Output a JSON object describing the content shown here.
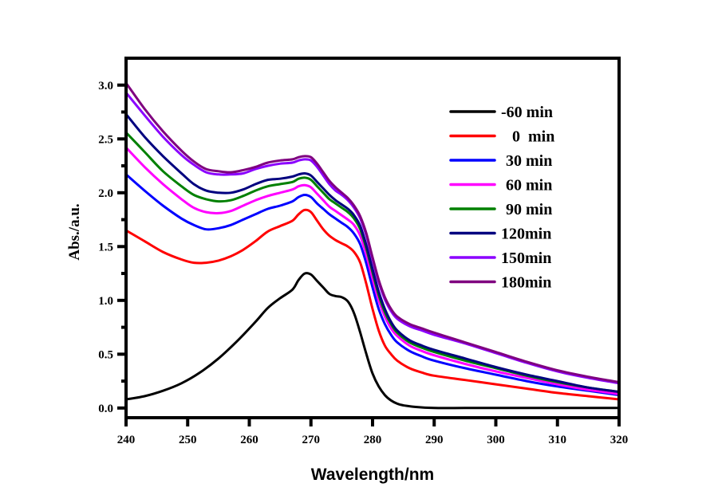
{
  "chart_data": {
    "type": "line",
    "title": "",
    "xlabel": "Wavelength/nm",
    "ylabel": "Abs./a.u.",
    "xlim": [
      240,
      320
    ],
    "ylim": [
      -0.09,
      3.25
    ],
    "xticks": [
      240,
      250,
      260,
      270,
      280,
      290,
      300,
      310,
      320
    ],
    "xtick_labels": [
      "240",
      "250",
      "260",
      "270",
      "280",
      "290",
      "300",
      "310",
      "320"
    ],
    "yticks": [
      0.0,
      0.5,
      1.0,
      1.5,
      2.0,
      2.5,
      3.0
    ],
    "ytick_labels": [
      "0.0",
      "0.5",
      "1.0",
      "1.5",
      "2.0",
      "2.5",
      "3.0"
    ],
    "yminor_ticks": [
      0.25,
      0.75,
      1.25,
      1.75,
      2.25,
      2.75
    ],
    "grid": false,
    "legend_position": "top-right",
    "series": [
      {
        "name": "-60 min",
        "color": "#000000",
        "x": [
          240,
          243,
          246,
          249,
          252,
          255,
          258,
          261,
          263,
          265,
          267,
          268,
          269,
          270,
          271,
          272,
          273,
          274,
          275,
          276,
          277,
          278,
          279,
          280,
          281,
          282,
          283,
          284,
          285,
          287,
          290,
          295,
          300,
          310,
          320
        ],
        "y": [
          0.08,
          0.11,
          0.16,
          0.23,
          0.33,
          0.46,
          0.62,
          0.8,
          0.93,
          1.02,
          1.1,
          1.19,
          1.25,
          1.24,
          1.18,
          1.12,
          1.06,
          1.04,
          1.03,
          0.99,
          0.88,
          0.7,
          0.5,
          0.32,
          0.2,
          0.12,
          0.07,
          0.04,
          0.025,
          0.01,
          0.0,
          0.0,
          0.0,
          0.0,
          0.0
        ]
      },
      {
        "name": "0  min",
        "color": "#ff0000",
        "x": [
          240,
          243,
          246,
          249,
          251,
          253,
          255,
          257,
          259,
          261,
          263,
          265,
          267,
          268,
          269,
          270,
          271,
          272,
          273,
          274,
          275,
          276,
          277,
          278,
          279,
          280,
          281,
          282,
          283,
          284,
          286,
          288,
          290,
          295,
          300,
          305,
          310,
          315,
          320
        ],
        "y": [
          1.65,
          1.55,
          1.45,
          1.38,
          1.35,
          1.35,
          1.37,
          1.41,
          1.47,
          1.55,
          1.64,
          1.69,
          1.74,
          1.8,
          1.84,
          1.82,
          1.74,
          1.66,
          1.6,
          1.56,
          1.53,
          1.5,
          1.45,
          1.35,
          1.15,
          0.92,
          0.72,
          0.58,
          0.5,
          0.44,
          0.37,
          0.33,
          0.3,
          0.26,
          0.22,
          0.18,
          0.14,
          0.11,
          0.08
        ]
      },
      {
        "name": "30 min",
        "color": "#0000ff",
        "x": [
          240,
          243,
          246,
          249,
          251,
          253,
          255,
          257,
          259,
          261,
          263,
          265,
          267,
          268,
          269,
          270,
          271,
          272,
          273,
          274,
          275,
          276,
          277,
          278,
          279,
          280,
          281,
          282,
          283,
          284,
          286,
          288,
          290,
          295,
          300,
          305,
          310,
          315,
          320
        ],
        "y": [
          2.17,
          2.02,
          1.88,
          1.76,
          1.7,
          1.66,
          1.67,
          1.7,
          1.75,
          1.8,
          1.85,
          1.88,
          1.92,
          1.96,
          1.98,
          1.96,
          1.9,
          1.85,
          1.8,
          1.76,
          1.72,
          1.68,
          1.62,
          1.52,
          1.34,
          1.12,
          0.92,
          0.78,
          0.68,
          0.61,
          0.53,
          0.48,
          0.44,
          0.37,
          0.31,
          0.25,
          0.2,
          0.16,
          0.12
        ]
      },
      {
        "name": "60 min",
        "color": "#ff00ff",
        "x": [
          240,
          243,
          246,
          249,
          251,
          253,
          255,
          257,
          259,
          261,
          263,
          265,
          267,
          268,
          269,
          270,
          271,
          272,
          273,
          274,
          275,
          276,
          277,
          278,
          279,
          280,
          281,
          282,
          283,
          284,
          286,
          288,
          290,
          295,
          300,
          305,
          310,
          315,
          320
        ],
        "y": [
          2.42,
          2.24,
          2.08,
          1.94,
          1.86,
          1.82,
          1.81,
          1.83,
          1.88,
          1.93,
          1.97,
          2.0,
          2.03,
          2.06,
          2.07,
          2.05,
          1.99,
          1.93,
          1.87,
          1.83,
          1.79,
          1.75,
          1.7,
          1.6,
          1.42,
          1.2,
          1.0,
          0.85,
          0.74,
          0.67,
          0.58,
          0.53,
          0.49,
          0.41,
          0.34,
          0.28,
          0.22,
          0.17,
          0.13
        ]
      },
      {
        "name": "90 min",
        "color": "#008000",
        "x": [
          240,
          243,
          246,
          249,
          251,
          253,
          255,
          257,
          259,
          261,
          263,
          265,
          267,
          268,
          269,
          270,
          271,
          272,
          273,
          274,
          275,
          276,
          277,
          278,
          279,
          280,
          281,
          282,
          283,
          284,
          286,
          288,
          290,
          295,
          300,
          305,
          310,
          315,
          320
        ],
        "y": [
          2.56,
          2.38,
          2.2,
          2.06,
          1.98,
          1.94,
          1.92,
          1.93,
          1.97,
          2.02,
          2.06,
          2.08,
          2.1,
          2.13,
          2.14,
          2.12,
          2.06,
          2.0,
          1.94,
          1.9,
          1.86,
          1.82,
          1.76,
          1.66,
          1.48,
          1.26,
          1.05,
          0.89,
          0.78,
          0.7,
          0.61,
          0.56,
          0.52,
          0.44,
          0.37,
          0.3,
          0.24,
          0.19,
          0.15
        ]
      },
      {
        "name": "120min",
        "color": "#00007f",
        "x": [
          240,
          243,
          246,
          249,
          251,
          253,
          255,
          257,
          259,
          261,
          263,
          265,
          267,
          268,
          269,
          270,
          271,
          272,
          273,
          274,
          275,
          276,
          277,
          278,
          279,
          280,
          281,
          282,
          283,
          284,
          286,
          288,
          290,
          295,
          300,
          305,
          310,
          315,
          320
        ],
        "y": [
          2.73,
          2.52,
          2.34,
          2.18,
          2.08,
          2.02,
          2.0,
          2.0,
          2.03,
          2.08,
          2.12,
          2.13,
          2.15,
          2.17,
          2.18,
          2.16,
          2.1,
          2.04,
          1.98,
          1.93,
          1.89,
          1.85,
          1.79,
          1.69,
          1.51,
          1.29,
          1.08,
          0.92,
          0.8,
          0.72,
          0.63,
          0.58,
          0.54,
          0.46,
          0.38,
          0.31,
          0.25,
          0.19,
          0.15
        ]
      },
      {
        "name": "150min",
        "color": "#8b00ff",
        "x": [
          240,
          243,
          246,
          249,
          251,
          253,
          255,
          257,
          259,
          261,
          263,
          265,
          267,
          268,
          269,
          270,
          271,
          272,
          273,
          274,
          275,
          276,
          277,
          278,
          279,
          280,
          281,
          282,
          283,
          284,
          286,
          288,
          290,
          295,
          300,
          305,
          310,
          315,
          320
        ],
        "y": [
          2.93,
          2.72,
          2.52,
          2.35,
          2.26,
          2.19,
          2.17,
          2.17,
          2.18,
          2.22,
          2.25,
          2.27,
          2.28,
          2.3,
          2.31,
          2.3,
          2.24,
          2.16,
          2.08,
          2.02,
          1.98,
          1.93,
          1.86,
          1.76,
          1.6,
          1.38,
          1.17,
          1.01,
          0.9,
          0.83,
          0.76,
          0.72,
          0.68,
          0.6,
          0.51,
          0.42,
          0.34,
          0.28,
          0.23
        ]
      },
      {
        "name": "180min",
        "color": "#7f007f",
        "x": [
          240,
          243,
          246,
          249,
          251,
          253,
          255,
          257,
          259,
          261,
          263,
          265,
          267,
          268,
          269,
          270,
          271,
          272,
          273,
          274,
          275,
          276,
          277,
          278,
          279,
          280,
          281,
          282,
          283,
          284,
          286,
          288,
          290,
          295,
          300,
          305,
          310,
          315,
          320
        ],
        "y": [
          3.02,
          2.78,
          2.57,
          2.39,
          2.29,
          2.22,
          2.2,
          2.19,
          2.21,
          2.24,
          2.28,
          2.3,
          2.31,
          2.33,
          2.34,
          2.33,
          2.27,
          2.19,
          2.11,
          2.05,
          2.0,
          1.95,
          1.88,
          1.78,
          1.62,
          1.4,
          1.19,
          1.03,
          0.92,
          0.85,
          0.78,
          0.74,
          0.7,
          0.61,
          0.52,
          0.43,
          0.35,
          0.29,
          0.24
        ]
      }
    ]
  }
}
